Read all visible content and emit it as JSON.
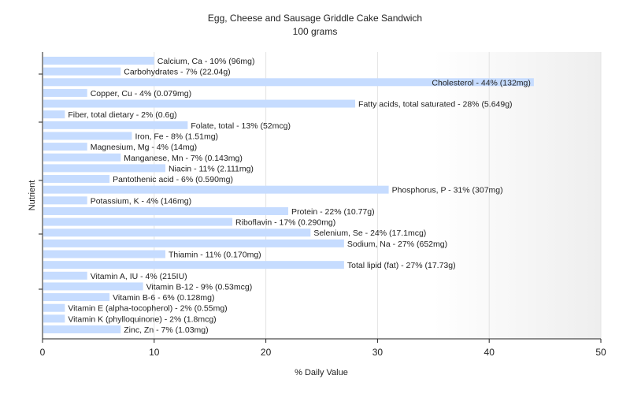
{
  "chart_data": {
    "type": "bar",
    "orientation": "horizontal",
    "title": "Egg, Cheese and Sausage Griddle Cake Sandwich",
    "subtitle": "100 grams",
    "xlabel": "% Daily Value",
    "ylabel": "Nutrient",
    "xlim": [
      0,
      50
    ],
    "xticks": [
      "0",
      "10",
      "20",
      "30",
      "40",
      "50"
    ],
    "grid": true,
    "bar_color": "#c6dcff",
    "categories": [
      "Calcium, Ca - 10% (96mg)",
      "Carbohydrates - 7% (22.04g)",
      "Cholesterol - 44% (132mg)",
      "Copper, Cu - 4% (0.079mg)",
      "Fatty acids, total saturated - 28% (5.649g)",
      "Fiber, total dietary - 2% (0.6g)",
      "Folate, total - 13% (52mcg)",
      "Iron, Fe - 8% (1.51mg)",
      "Magnesium, Mg - 4% (14mg)",
      "Manganese, Mn - 7% (0.143mg)",
      "Niacin - 11% (2.111mg)",
      "Pantothenic acid - 6% (0.590mg)",
      "Phosphorus, P - 31% (307mg)",
      "Potassium, K - 4% (146mg)",
      "Protein - 22% (10.77g)",
      "Riboflavin - 17% (0.290mg)",
      "Selenium, Se - 24% (17.1mcg)",
      "Sodium, Na - 27% (652mg)",
      "Thiamin - 11% (0.170mg)",
      "Total lipid (fat) - 27% (17.73g)",
      "Vitamin A, IU - 4% (215IU)",
      "Vitamin B-12 - 9% (0.53mcg)",
      "Vitamin B-6 - 6% (0.128mg)",
      "Vitamin E (alpha-tocopherol) - 2% (0.55mg)",
      "Vitamin K (phylloquinone) - 2% (1.8mcg)",
      "Zinc, Zn - 7% (1.03mg)"
    ],
    "values": [
      10,
      7,
      44,
      4,
      28,
      2,
      13,
      8,
      4,
      7,
      11,
      6,
      31,
      4,
      22,
      17,
      24,
      27,
      11,
      27,
      4,
      9,
      6,
      2,
      2,
      7
    ]
  }
}
